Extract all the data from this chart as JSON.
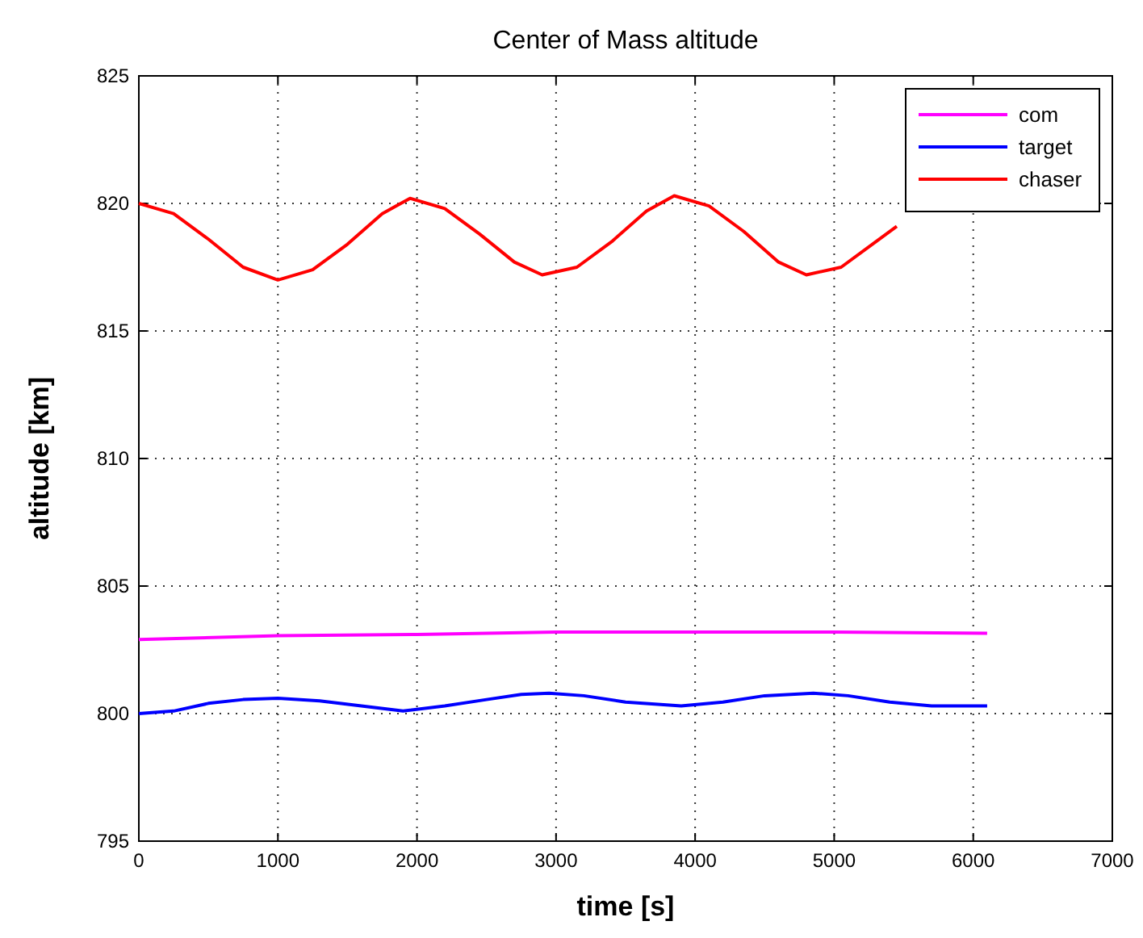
{
  "chart_data": {
    "type": "line",
    "title": "Center of Mass altitude",
    "xlabel": "time [s]",
    "ylabel": "altitude [km]",
    "xlim": [
      0,
      7000
    ],
    "xticks": [
      0,
      1000,
      2000,
      3000,
      4000,
      5000,
      6000,
      7000
    ],
    "ylim": [
      795,
      825
    ],
    "yticks": [
      795,
      800,
      805,
      810,
      815,
      820,
      825
    ],
    "grid": true,
    "legend": "top right",
    "line_style": "solid",
    "series": [
      {
        "name": "com",
        "color": "#ff00ff",
        "x": [
          0,
          1000,
          2000,
          3000,
          4000,
          5000,
          6100
        ],
        "values": [
          802.9,
          803.05,
          803.1,
          803.2,
          803.2,
          803.2,
          803.15
        ]
      },
      {
        "name": "target",
        "color": "#0000ff",
        "x": [
          0,
          250,
          500,
          750,
          1000,
          1300,
          1600,
          1900,
          2200,
          2500,
          2750,
          2950,
          3200,
          3500,
          3900,
          4200,
          4500,
          4850,
          5100,
          5400,
          5700,
          6100
        ],
        "values": [
          800,
          800.1,
          800.4,
          800.55,
          800.6,
          800.5,
          800.3,
          800.1,
          800.3,
          800.55,
          800.75,
          800.8,
          800.7,
          800.45,
          800.3,
          800.45,
          800.7,
          800.8,
          800.7,
          800.45,
          800.3,
          800.3
        ]
      },
      {
        "name": "chaser",
        "color": "#ff0000",
        "x": [
          0,
          250,
          500,
          750,
          1000,
          1250,
          1500,
          1750,
          1950,
          2200,
          2450,
          2700,
          2900,
          3150,
          3400,
          3650,
          3850,
          4100,
          4350,
          4600,
          4800,
          5050,
          5300,
          5450
        ],
        "values": [
          820,
          819.6,
          818.6,
          817.5,
          817.0,
          817.4,
          818.4,
          819.6,
          820.2,
          819.8,
          818.8,
          817.7,
          817.2,
          817.5,
          818.5,
          819.7,
          820.3,
          819.9,
          818.9,
          817.7,
          817.2,
          817.5,
          818.5,
          819.1
        ]
      }
    ]
  }
}
